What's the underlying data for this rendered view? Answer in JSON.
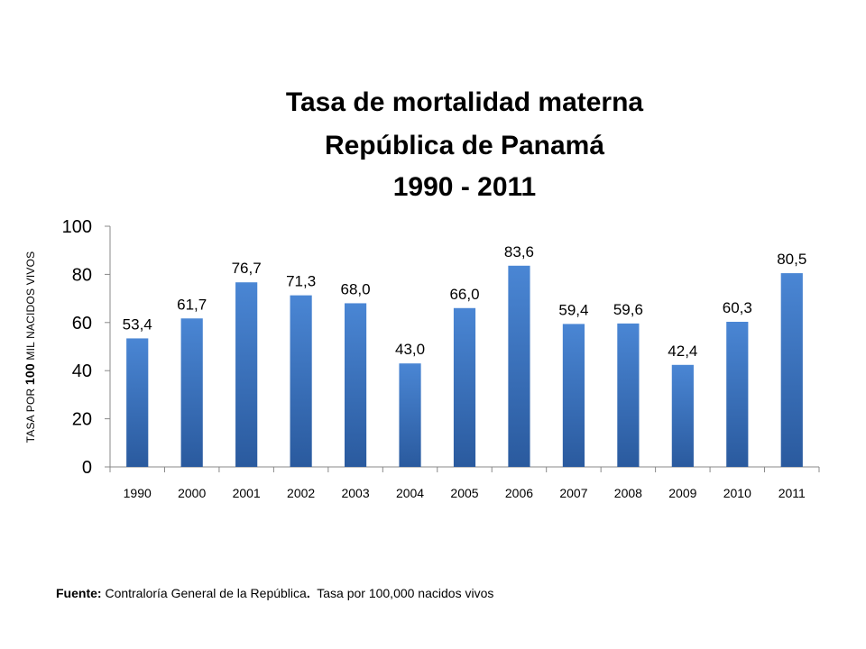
{
  "chart_data": {
    "type": "bar",
    "title_lines": [
      "Tasa de mortalidad materna",
      "República de Panamá",
      "1990 - 2011"
    ],
    "ylabel_pre": "TASA  POR ",
    "ylabel_num": "100",
    "ylabel_post": " MIL NACIDOS VIVOS",
    "xlabel": "",
    "categories": [
      "1990",
      "2000",
      "2001",
      "2002",
      "2003",
      "2004",
      "2005",
      "2006",
      "2007",
      "2008",
      "2009",
      "2010",
      "2011"
    ],
    "values": [
      53.4,
      61.7,
      76.7,
      71.3,
      68.0,
      43.0,
      66.0,
      83.6,
      59.4,
      59.6,
      42.4,
      60.3,
      80.5
    ],
    "value_labels": [
      "53,4",
      "61,7",
      "76,7",
      "71,3",
      "68,0",
      "43,0",
      "66,0",
      "83,6",
      "59,4",
      "59,6",
      "42,4",
      "60,3",
      "80,5"
    ],
    "ylim": [
      0,
      100
    ],
    "yticks": [
      0,
      20,
      40,
      60,
      80,
      100
    ],
    "grid": false,
    "legend": "none",
    "bar_color_top": "#4a86d4",
    "bar_color_bottom": "#2a5a9e"
  },
  "source": {
    "label": "Fuente:",
    "text": " Contraloría General de la República",
    "dot": ".",
    "note": "  Tasa por 100,000 nacidos vivos"
  }
}
